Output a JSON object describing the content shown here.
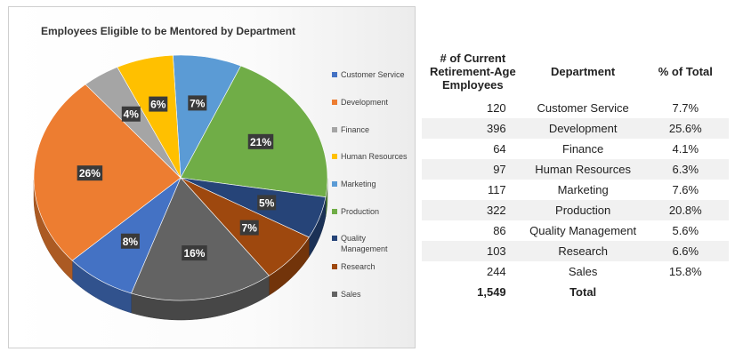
{
  "chart_data": {
    "type": "pie",
    "title": "Employees Eligible to be Mentored by Department",
    "categories": [
      "Customer Service",
      "Development",
      "Finance",
      "Human Resources",
      "Marketing",
      "Production",
      "Quality Management",
      "Research",
      "Sales"
    ],
    "legend_labels": [
      "Customer Service",
      "Development",
      "Finance",
      "Human Resources",
      "Marketing",
      "Production",
      "Quality Management",
      "Research",
      "Sales"
    ],
    "values": [
      120,
      396,
      64,
      97,
      117,
      322,
      86,
      103,
      244
    ],
    "labels": [
      "8%",
      "26%",
      "4%",
      "6%",
      "7%",
      "21%",
      "5%",
      "7%",
      "16%"
    ],
    "colors": [
      "#4472c4",
      "#ed7d31",
      "#a5a5a5",
      "#ffc000",
      "#5b9bd5",
      "#70ad47",
      "#264478",
      "#9e480e",
      "#636363"
    ],
    "legend_position": "right"
  },
  "table": {
    "headers": {
      "count_line1": "# of Current",
      "count_line2": "Retirement-Age",
      "count_line3": "Employees",
      "department": "Department",
      "pct": "% of Total"
    },
    "rows": [
      {
        "count": "120",
        "department": "Customer Service",
        "pct": "7.7%"
      },
      {
        "count": "396",
        "department": "Development",
        "pct": "25.6%"
      },
      {
        "count": "64",
        "department": "Finance",
        "pct": "4.1%"
      },
      {
        "count": "97",
        "department": "Human Resources",
        "pct": "6.3%"
      },
      {
        "count": "117",
        "department": "Marketing",
        "pct": "7.6%"
      },
      {
        "count": "322",
        "department": "Production",
        "pct": "20.8%"
      },
      {
        "count": "86",
        "department": "Quality Management",
        "pct": "5.6%"
      },
      {
        "count": "103",
        "department": "Research",
        "pct": "6.6%"
      },
      {
        "count": "244",
        "department": "Sales",
        "pct": "15.8%"
      }
    ],
    "total": {
      "count": "1,549",
      "label": "Total"
    }
  }
}
